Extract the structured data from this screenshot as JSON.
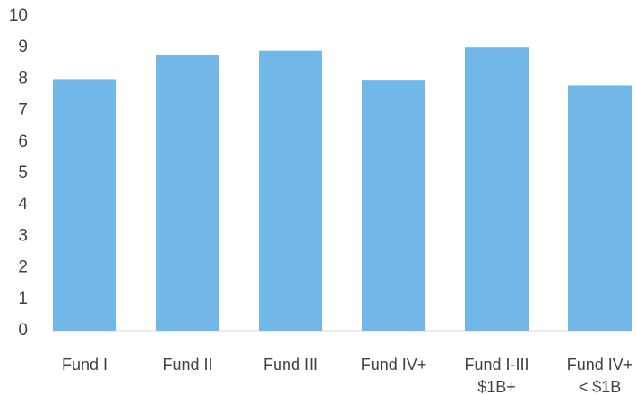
{
  "chart_data": {
    "type": "bar",
    "categories": [
      "Fund I",
      "Fund II",
      "Fund III",
      "Fund IV+",
      "Fund I-III\n$1B+",
      "Fund IV+\n< $1B"
    ],
    "values": [
      8.0,
      8.75,
      8.9,
      7.95,
      9.0,
      7.8
    ],
    "color": "#71b7e8",
    "ylim": [
      0,
      10
    ],
    "yticks": [
      0,
      1,
      2,
      3,
      4,
      5,
      6,
      7,
      8,
      9,
      10
    ],
    "grid": false
  }
}
